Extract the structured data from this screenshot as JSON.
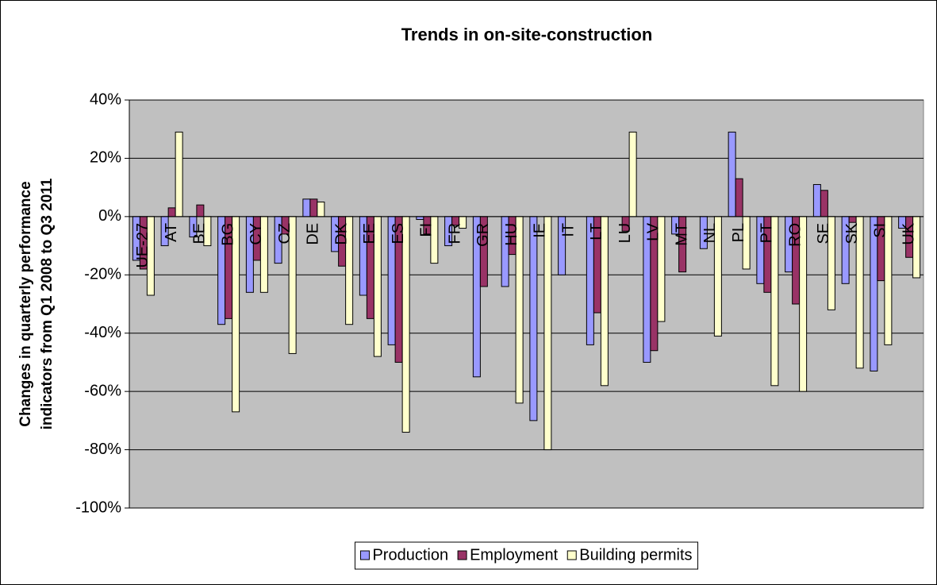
{
  "chart_data": {
    "type": "bar",
    "title": "Trends in on-site-construction",
    "ylabel": [
      "Changes in quarterly performance",
      "indicators from Q1 2008 to Q3 2011"
    ],
    "categories": [
      "UE-27",
      "AT",
      "BE",
      "BG",
      "CY",
      "CZ",
      "DE",
      "DK",
      "EE",
      "ES",
      "FI",
      "FR",
      "GR",
      "HU",
      "IE",
      "IT",
      "LT",
      "LU",
      "LV",
      "MT",
      "NL",
      "PL",
      "PT",
      "RO",
      "SE",
      "SK",
      "SI",
      "UK"
    ],
    "series": [
      {
        "name": "Production",
        "color": "#9999ff",
        "values": [
          -15,
          -10,
          -7,
          -37,
          -26,
          -16,
          6,
          -12,
          -27,
          -44,
          -1,
          -10,
          -55,
          -24,
          -70,
          -20,
          -44,
          null,
          -50,
          -6,
          -11,
          29,
          -23,
          -19,
          11,
          -23,
          -53,
          -4
        ]
      },
      {
        "name": "Employment",
        "color": "#993366",
        "values": [
          -18,
          3,
          4,
          -35,
          -15,
          -6,
          6,
          -17,
          -35,
          -50,
          -6,
          -3,
          -24,
          -13,
          null,
          null,
          -33,
          -5,
          -46,
          -19,
          null,
          13,
          -26,
          -30,
          9,
          -2,
          -22,
          -14
        ]
      },
      {
        "name": "Building permits",
        "color": "#ffffcc",
        "values": [
          -27,
          29,
          -10,
          -67,
          -26,
          -47,
          5,
          -37,
          -48,
          -74,
          -16,
          -4,
          null,
          -64,
          -80,
          null,
          -58,
          29,
          -36,
          null,
          -41,
          -18,
          -58,
          -60,
          -32,
          -52,
          -44,
          -21
        ]
      }
    ],
    "ylim": [
      -100,
      40
    ],
    "yticks": [
      {
        "value": -100,
        "label": "-100%"
      },
      {
        "value": -80,
        "label": "-80%"
      },
      {
        "value": -60,
        "label": "-60%"
      },
      {
        "value": -40,
        "label": "-40%"
      },
      {
        "value": -20,
        "label": "-20%"
      },
      {
        "value": 0,
        "label": "0%"
      },
      {
        "value": 20,
        "label": "20%"
      },
      {
        "value": 40,
        "label": "40%"
      }
    ],
    "grid": true,
    "plot_background": "#c0c0c0",
    "legend": "bottom"
  }
}
